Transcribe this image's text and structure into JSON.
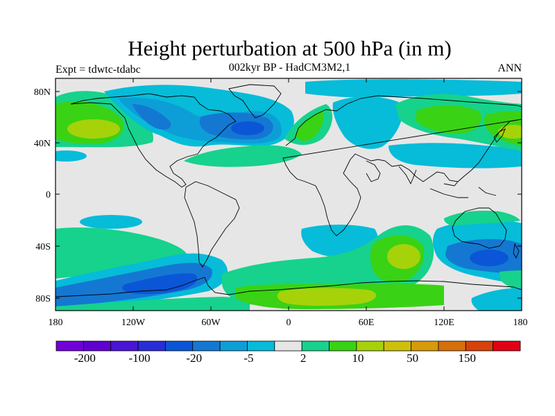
{
  "title": "Height perturbation at 500 hPa (in m)",
  "subtitle": "002kyr BP - HadCM3M2,1",
  "left_label": "Expt = tdwtc-tdabc",
  "right_label": "ANN",
  "lat_ticks": [
    "80N",
    "40N",
    "0",
    "40S",
    "80S"
  ],
  "lon_ticks": [
    "180",
    "120W",
    "60W",
    "0",
    "60E",
    "120E",
    "180"
  ],
  "colorbar": {
    "colors": [
      "#7000d8",
      "#5f00d2",
      "#4a14d4",
      "#2a2cd6",
      "#0b56d6",
      "#1478d2",
      "#0d9ed8",
      "#06bcd8",
      "#e6e6e6",
      "#16d28c",
      "#3ad214",
      "#a6d20a",
      "#cec00a",
      "#d69a0a",
      "#d6700a",
      "#d6420a",
      "#e20014"
    ],
    "labels": [
      "-200",
      "-100",
      "-20",
      "-5",
      "2",
      "10",
      "50",
      "150"
    ]
  },
  "chart_data": {
    "type": "heatmap",
    "projection": "cylindrical equidistant",
    "variable": "Height perturbation at 500 hPa",
    "units": "m",
    "x_range": [
      -180,
      180
    ],
    "y_range": [
      -90,
      90
    ],
    "levels": [
      -200,
      -100,
      -20,
      -5,
      2,
      10,
      50,
      150
    ],
    "features": [
      {
        "region": "North Atlantic / eastern North America",
        "sign": "negative",
        "magnitude": "about -20 to -100"
      },
      {
        "region": "Southern Ocean south of Australia",
        "sign": "negative",
        "magnitude": "about -20 to -100"
      },
      {
        "region": "South Pacific / Antarctic coast",
        "sign": "negative",
        "magnitude": "about -20 to -100"
      },
      {
        "region": "South Indian Ocean",
        "sign": "positive",
        "magnitude": "about 10 to 50"
      },
      {
        "region": "Antarctica (0-90E)",
        "sign": "positive",
        "magnitude": "about 10 to 50"
      },
      {
        "region": "North Pacific / Alaska",
        "sign": "positive",
        "magnitude": "about 10 to 50"
      },
      {
        "region": "Siberia",
        "sign": "positive",
        "magnitude": "about 10 to 50"
      }
    ]
  }
}
